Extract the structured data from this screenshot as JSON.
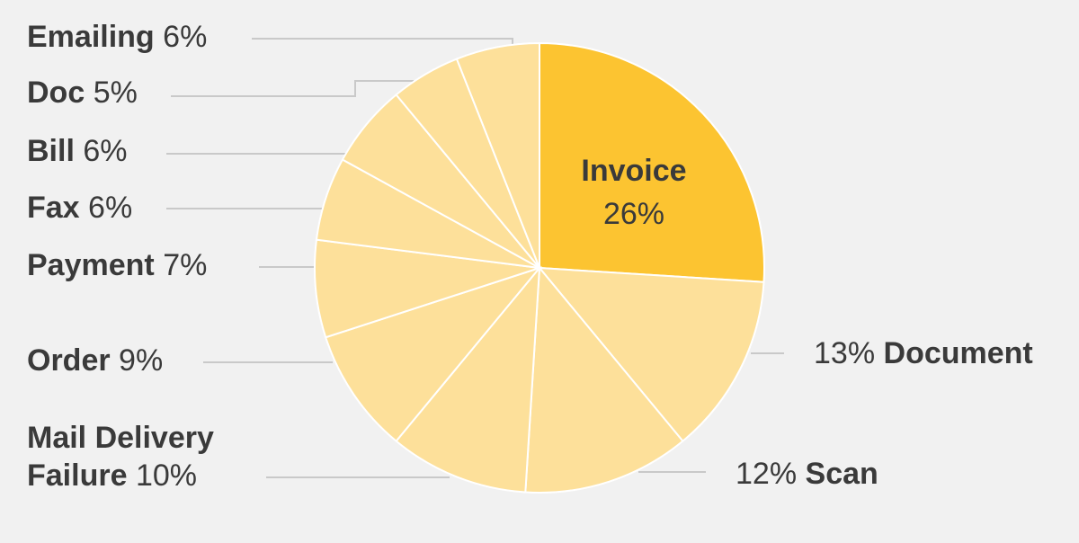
{
  "chart_data": {
    "type": "pie",
    "categories": [
      "Invoice",
      "Document",
      "Scan",
      "Mail Delivery Failure",
      "Order",
      "Payment",
      "Fax",
      "Bill",
      "Doc",
      "Emailing"
    ],
    "values": [
      26,
      13,
      12,
      10,
      9,
      7,
      6,
      6,
      5,
      6
    ],
    "value_labels": [
      "26%",
      "13%",
      "12%",
      "10%",
      "9%",
      "7%",
      "6%",
      "6%",
      "5%",
      "6%"
    ],
    "colors": [
      "#fcc431",
      "#fde09a",
      "#fde09a",
      "#fde09a",
      "#fde09a",
      "#fde09a",
      "#fde09a",
      "#fde09a",
      "#fde09a",
      "#fde09a"
    ]
  }
}
